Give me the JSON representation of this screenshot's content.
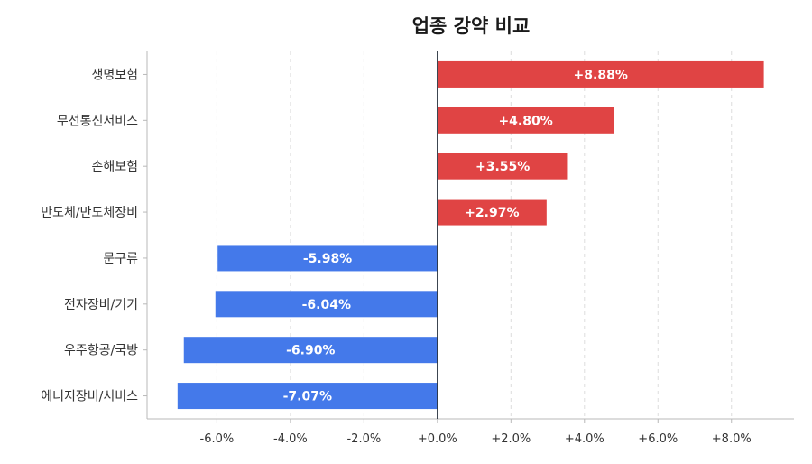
{
  "chart_data": {
    "type": "bar",
    "orientation": "horizontal",
    "title": "업종 강약 비교",
    "xlabel": "",
    "ylabel": "",
    "xlim": [
      -7.9,
      9.7
    ],
    "x_ticks": [
      -6,
      -4,
      -2,
      0,
      2,
      4,
      6,
      8
    ],
    "x_tick_labels": [
      "-6.0%",
      "-4.0%",
      "-2.0%",
      "+0.0%",
      "+2.0%",
      "+4.0%",
      "+6.0%",
      "+8.0%"
    ],
    "grid": "vertical dashed",
    "categories": [
      "생명보험",
      "무선통신서비스",
      "손해보험",
      "반도체/반도체장비",
      "문구류",
      "전자장비/기기",
      "우주항공/국방",
      "에너지장비/서비스"
    ],
    "values": [
      8.88,
      4.8,
      3.55,
      2.97,
      -5.98,
      -6.04,
      -6.9,
      -7.07
    ],
    "value_labels": [
      "+8.88%",
      "+4.80%",
      "+3.55%",
      "+2.97%",
      "-5.98%",
      "-6.04%",
      "-6.90%",
      "-7.07%"
    ],
    "colors": {
      "positive": "#e04444",
      "negative": "#4479ea",
      "zero_line": "#2b3440",
      "grid": "#dddddd",
      "axis": "#b8b8b8"
    }
  }
}
